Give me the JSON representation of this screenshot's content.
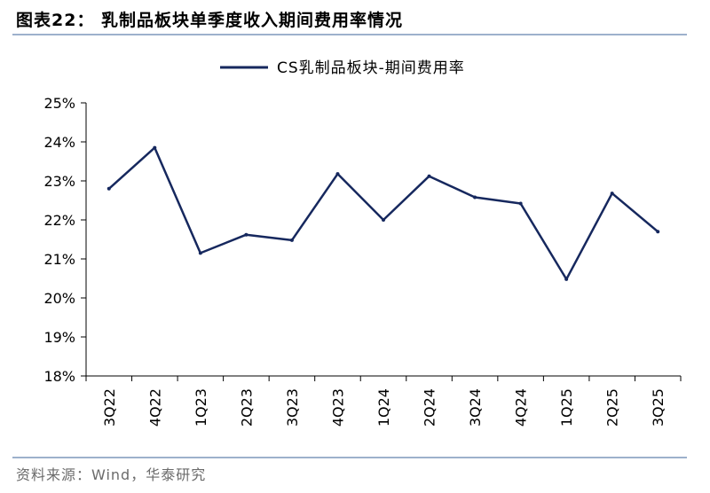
{
  "figure": {
    "title": "图表22：  乳制品板块单季度收入期间费用率情况",
    "source": "资料来源：Wind，华泰研究"
  },
  "chart_data": {
    "type": "line",
    "categories": [
      "3Q22",
      "4Q22",
      "1Q23",
      "2Q23",
      "3Q23",
      "4Q23",
      "1Q24",
      "2Q24",
      "3Q24",
      "4Q24",
      "1Q25",
      "2Q25",
      "3Q25"
    ],
    "series": [
      {
        "name": "CS乳制品板块-期间费用率",
        "color": "#16285e",
        "values": [
          22.8,
          23.85,
          21.15,
          21.62,
          21.48,
          23.18,
          22.0,
          23.12,
          22.58,
          22.42,
          20.48,
          22.68,
          21.7
        ]
      }
    ],
    "ylim": [
      18,
      25
    ],
    "yticks": [
      18,
      19,
      20,
      21,
      22,
      23,
      24,
      25
    ],
    "ytick_labels": [
      "18%",
      "19%",
      "20%",
      "21%",
      "22%",
      "23%",
      "24%",
      "25%"
    ],
    "legend_position": "top-center",
    "grid": false
  }
}
